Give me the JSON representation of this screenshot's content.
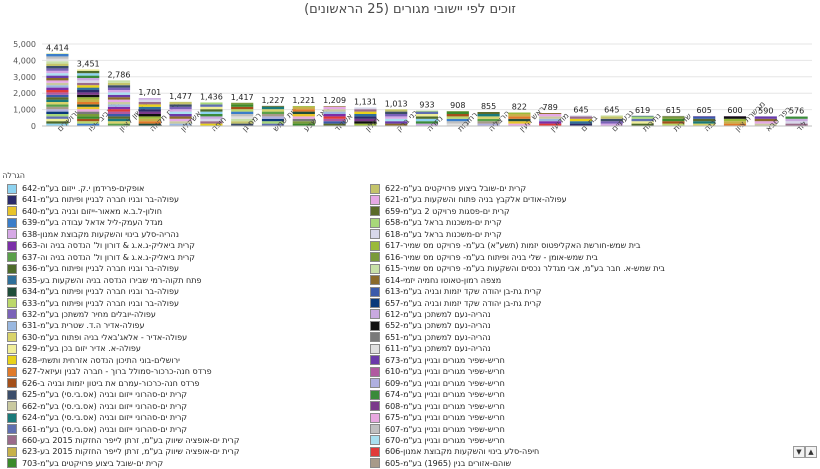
{
  "chart_data": {
    "type": "bar",
    "title": "זוכים לפי יישובי מגורים (25 הראשונים)",
    "ylim": [
      0,
      5000
    ],
    "yticks": [
      0,
      1000,
      2000,
      3000,
      4000,
      5000
    ],
    "ytick_labels": [
      "0",
      "1,000",
      "2,000",
      "3,000",
      "4,000",
      "5,000"
    ],
    "categories": [
      "ירושלים",
      "תל אביב -יפו",
      "ראשון לציון",
      "פתח תקווה",
      "אשקלון",
      "חיפה",
      "רמת גן",
      "בית שמש",
      "באר שבע",
      "אשדוד",
      "חולון",
      "בני ברק",
      "נתניה",
      "רחובות",
      "הרצליה",
      "ראש העין",
      "מודיעין",
      "בת ים",
      "גבעתיים",
      "נתיבות",
      "שדרות",
      "יבנה",
      "מבשרת ציון",
      "כפר סבא",
      "לוד"
    ],
    "values": [
      4414,
      3451,
      2786,
      1701,
      1477,
      1436,
      1417,
      1227,
      1221,
      1209,
      1131,
      1013,
      933,
      908,
      855,
      822,
      789,
      645,
      645,
      619,
      615,
      605,
      600,
      590,
      576
    ],
    "value_labels": [
      "4,414",
      "3,451",
      "2,786",
      "1,701",
      "1,477",
      "1,436",
      "1,417",
      "1,227",
      "1,221",
      "1,209",
      "1,131",
      "1,013",
      "933",
      "908",
      "855",
      "822",
      "789",
      "645",
      "645",
      "619",
      "615",
      "605",
      "600",
      "590",
      "576"
    ],
    "legend_title": "הגרלה",
    "legend_left": [
      {
        "label": "אופקים-פרידמן י.ק. ייזום בע\"מ-642",
        "color": "#8ed3f0"
      },
      {
        "label": "עפולה-בר ובניו חברה לבניין ופיתוח בע\"מ-641",
        "color": "#2a2a6a"
      },
      {
        "label": "חולון-ל.ב.א מאאור-ייזום ובניה בע\"מ-640",
        "color": "#e8c42a"
      },
      {
        "label": "מגדל העמק-ליל אדאל עבודה בע\"מ-639",
        "color": "#3a7dc9"
      },
      {
        "label": "נהריה-סלע בינוי והשקעות מקבוצת אמנון-638",
        "color": "#d6a9e6"
      },
      {
        "label": "קרית ביאליק-ג.א.ג & דורון ול' הנדסה בניה וה-663",
        "color": "#7b2fa8"
      },
      {
        "label": "קרית ביאליק-ג.א.ג & דורון ול' הנדסה בניה וה-637",
        "color": "#5aa04a"
      },
      {
        "label": "עפולה-בר ובניו חברה לבניין ופיתוח בע\"מ-636",
        "color": "#4d6b2a"
      },
      {
        "label": "פתח תקוה-רמי שבירו הנדסה בניה והשקעות בע-635",
        "color": "#2f6f9a"
      },
      {
        "label": "עפולה-בר ובניו חברה לבניין ופיתוח בע\"מ-634",
        "color": "#1f4d3a"
      },
      {
        "label": "עפולה-בר ובניו חברה לבניין ופיתוח בע\"מ-633",
        "color": "#bcd86a"
      },
      {
        "label": "עפולה-יובלים מחיר למשתכן בע\"מ-632",
        "color": "#7a62b8"
      },
      {
        "label": "עפולה-אדיר ה.ד. שטרית בע\"מ-631",
        "color": "#9ab8e0"
      },
      {
        "label": "עפולה-אדיר - אלאג'באלי בניה ופתוח בע\"מ-630",
        "color": "#d9d36a"
      },
      {
        "label": "עפולה-א. אדיר יזום בכן בע\"מ-629",
        "color": "#f0ee9a"
      },
      {
        "label": "ירושלים-בוני התיכון הנדסה אזרחית ותשתי-628",
        "color": "#e8d21a"
      },
      {
        "label": "פרדס חנה-כרכור-סמולל ברוך - חברה לבנין ועיזאל-627",
        "color": "#e07a2a"
      },
      {
        "label": "פרדס חנה-כרכור-עמרם את ביטון יזמות ובניה ב-626",
        "color": "#a4501a"
      },
      {
        "label": "קרית ים-סהרוני ייזום ובניה (אס.בי.סי) בע\"מ-625",
        "color": "#3b4d6a"
      },
      {
        "label": "קרית ים-סהרוני ייזום ובניה (אס.בי.סי) בע\"מ-662",
        "color": "#c9c9a0"
      },
      {
        "label": "קרית ים-סהרוני ייזום ובניה (אס.בי.סי) בע\"מ-624",
        "color": "#1a7a7a"
      },
      {
        "label": "קרית ים-סהרוני ייזום ובניה (אס.בי.סי) בע\"מ-661",
        "color": "#5f6fb0"
      },
      {
        "label": "קרית ים-אופציה שיווק בע\"מ, זרתן לייפר החזקות 2015 בע-660",
        "color": "#9a6b8a"
      },
      {
        "label": "קרית ים-אופציה שיווק בע\"מ, זרתן לייפר החזקות 2015 בע-623",
        "color": "#c7b14a"
      },
      {
        "label": "קרית ים-שובל ביצוע פרויקטים בע\"מ-703",
        "color": "#3a8a2a"
      }
    ],
    "legend_right": [
      {
        "label": "קרית ים-שובל ביצוע פרויקטים בע\"מ-622",
        "color": "#c4c46a"
      },
      {
        "label": "עפולה-אודים אלקבץ בניה פתוח והשקעות בע\"מ-621",
        "color": "#e6a9e6"
      },
      {
        "label": "קרית ים-פסגות פרויקט 2 בע\"מ-659",
        "color": "#5a6a2a"
      },
      {
        "label": "קרית ים-משכנות בראל בע\"מ-658",
        "color": "#a8d87a"
      },
      {
        "label": "קרית ים-משכנות בראל בע\"מ-618",
        "color": "#d8d8ea"
      },
      {
        "label": "בית שמש-חורשת האקליפטוס יזמות (תשע\"א) בע\"מ- פרויקט מס שמיר-617",
        "color": "#9aba3a"
      },
      {
        "label": "בית שמש-אומן - שלי בניה ופיתוח בע\"מ- פרויקט מס שמיר-616",
        "color": "#7a9a3a"
      },
      {
        "label": "בית שמש-א. חבר בע\"מ, אבי מגדלר נכסים והשקעות בע\"מ- פרויקט מס שמיר-615",
        "color": "#c8e0a8"
      },
      {
        "label": "מצפה רמון-טאוטו נחמיה יזמי-614",
        "color": "#8a6a2a"
      },
      {
        "label": "קרית גת-בן יהודה שקד יזמות ובניה בע\"מ-613",
        "color": "#3a5aaa"
      },
      {
        "label": "קרית גת-בן יהודה שקד יזמות ובניה בע\"מ-657",
        "color": "#0a3a7a"
      },
      {
        "label": "נהריה-נעם למשתכן בע\"מ-612",
        "color": "#c9a9e0"
      },
      {
        "label": "נהריה-נעם למשתכן בע\"מ-652",
        "color": "#101010"
      },
      {
        "label": "נהריה-נעם למשתכן בע\"מ-651",
        "color": "#7a7a7a"
      },
      {
        "label": "נהריה-נעם למשתכן בע\"מ-611",
        "color": "#e0e0e0"
      },
      {
        "label": "חריש-שפיר מגורים ובניין בע\"מ-673",
        "color": "#6a3aaa"
      },
      {
        "label": "חריש-שפיר מגורים ובניין בע\"מ-610",
        "color": "#b05aa0"
      },
      {
        "label": "חריש-שפיר מגורים ובניין בע\"מ-609",
        "color": "#b0b0e0"
      },
      {
        "label": "חריש-שפיר מגורים ובניין בע\"מ-674",
        "color": "#3a8a3a"
      },
      {
        "label": "חריש-שפיר מגורים ובניין בע\"מ-608",
        "color": "#7a3a8a"
      },
      {
        "label": "חריש-שפיר מגורים ובניין בע\"מ-675",
        "color": "#e8a9e0"
      },
      {
        "label": "חריש-שפיר מגורים ובניין בע\"מ-607",
        "color": "#c0c0c0"
      },
      {
        "label": "חריש-שפיר מגורים ובניין בע\"מ-670",
        "color": "#a8e0f0"
      },
      {
        "label": "חיפה-סלע בינוי והשקעות מקבוצת אמנון-606",
        "color": "#e03a3a"
      },
      {
        "label": "שוהם-אזורים בנין (1965) בע\"מ-605",
        "color": "#a89a8a"
      }
    ]
  },
  "pager": {
    "down": "▼",
    "up": "▲"
  }
}
